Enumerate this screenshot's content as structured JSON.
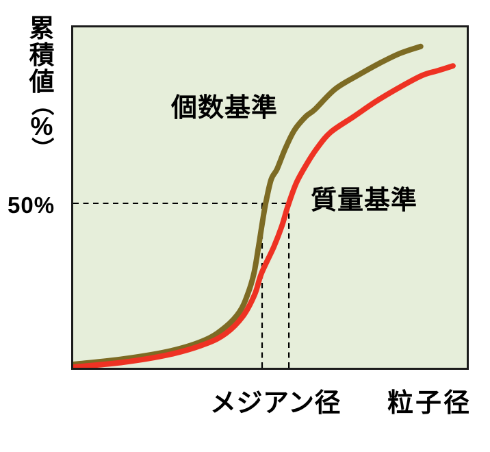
{
  "figure": {
    "fifty_label": "50%",
    "ylabel_stack": [
      {
        "ch": "累",
        "rot": false
      },
      {
        "ch": "積",
        "rot": false
      },
      {
        "ch": "値",
        "rot": false
      },
      {
        "ch": "（",
        "rot": true
      },
      {
        "ch": "%",
        "rot": false
      },
      {
        "ch": "）",
        "rot": true
      }
    ],
    "colors": {
      "number_curve": "#7d6b24",
      "mass_curve": "#ee3223",
      "plot_bg": "#e6eeda",
      "plot_border": "#1b1b1b",
      "dashed_line": "#000000",
      "text": "#000000"
    }
  },
  "chart_data": {
    "type": "line",
    "title": "",
    "xlabel": "粒子径",
    "ylabel": "累積値（%）",
    "x_axis": {
      "label": "粒子径",
      "numeric_ticks": false,
      "tick_label": "メジアン径"
    },
    "y_axis": {
      "label": "累積値（%）",
      "range": [
        0,
        100
      ],
      "reference_value_label": "50%"
    },
    "grid": false,
    "legend_position": "inline-annotations",
    "series": [
      {
        "name": "個数基準",
        "color": "#7d6b24",
        "median_x_pct": 48.0,
        "points": [
          [
            0,
            1.0
          ],
          [
            12.7,
            2.6
          ],
          [
            24.9,
            5.0
          ],
          [
            33.6,
            8.2
          ],
          [
            38.8,
            12.1
          ],
          [
            42.3,
            16.5
          ],
          [
            44.3,
            21.5
          ],
          [
            45.9,
            27.6
          ],
          [
            47.1,
            35.6
          ],
          [
            48.2,
            43.7
          ],
          [
            48.9,
            48.3
          ],
          [
            50.3,
            55.3
          ],
          [
            51.8,
            58.4
          ],
          [
            53.9,
            64.4
          ],
          [
            56.2,
            69.8
          ],
          [
            59.1,
            73.8
          ],
          [
            61.4,
            75.9
          ],
          [
            66.6,
            81.9
          ],
          [
            72.3,
            85.9
          ],
          [
            77.9,
            89.5
          ],
          [
            83.1,
            92.4
          ],
          [
            88.3,
            94.4
          ]
        ]
      },
      {
        "name": "質量基準",
        "color": "#ee3223",
        "median_x_pct": 54.8,
        "points": [
          [
            0,
            0.2
          ],
          [
            12.7,
            1.6
          ],
          [
            24.9,
            4.0
          ],
          [
            33.6,
            7.0
          ],
          [
            38.8,
            10.1
          ],
          [
            43.1,
            15.1
          ],
          [
            46.1,
            21.5
          ],
          [
            47.8,
            27.6
          ],
          [
            51.0,
            35.6
          ],
          [
            53.0,
            41.6
          ],
          [
            54.6,
            47.7
          ],
          [
            56.7,
            54.3
          ],
          [
            59.3,
            59.8
          ],
          [
            61.9,
            64.4
          ],
          [
            65.4,
            69.2
          ],
          [
            71.3,
            73.8
          ],
          [
            77.0,
            78.3
          ],
          [
            82.8,
            82.3
          ],
          [
            88.7,
            85.9
          ],
          [
            92.7,
            87.3
          ],
          [
            96.5,
            88.7
          ]
        ]
      }
    ],
    "annotations": {
      "fifty_line_y_pct": 48.3,
      "fifty_label": "50%",
      "median_label": "メジアン径"
    }
  }
}
